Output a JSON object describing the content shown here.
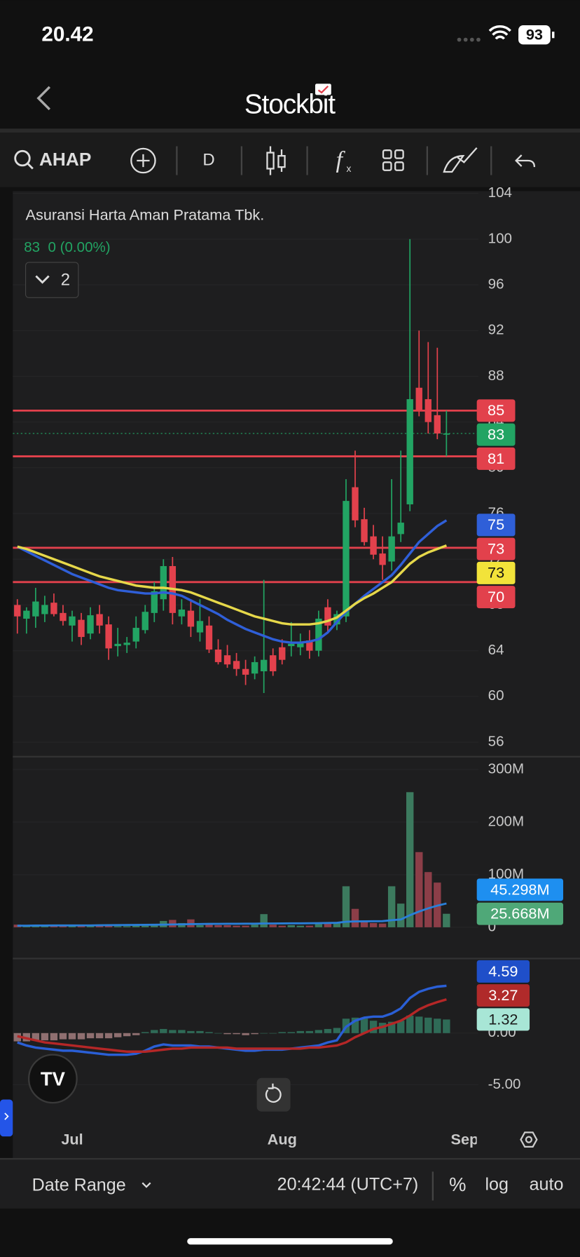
{
  "status_bar": {
    "time": "20.42",
    "battery": "93"
  },
  "header": {
    "logo": "Stockbit"
  },
  "toolbar": {
    "symbol": "AHAP",
    "interval": "D"
  },
  "footer": {
    "date_range": "Date Range",
    "clock": "20:42:44 (UTC+7)",
    "percent": "%",
    "log": "log",
    "auto": "auto"
  },
  "chart_data": [
    {
      "type": "candlestick",
      "title": "Asuransi Harta Aman Pratama Tbk.",
      "quote": "83  0 (0.00%)",
      "indicators": 2,
      "up_color": "#22a463",
      "down_color": "#e2414c",
      "xlim": [
        -0.5,
        50.5
      ],
      "xticks": [
        {
          "value": 6,
          "label": "Jul"
        },
        {
          "value": 29,
          "label": "Aug"
        },
        {
          "value": 49,
          "label": "Sep"
        }
      ],
      "ylim": [
        54.8,
        104.2
      ],
      "yticks": [
        56,
        60,
        64,
        68,
        72,
        76,
        80,
        84,
        88,
        92,
        96,
        100,
        104
      ],
      "open": [
        68,
        66.8,
        67,
        67.2,
        68.2,
        67.3,
        66.2,
        66.7,
        65.5,
        67.2,
        66.3,
        64.4,
        64.5,
        64.8,
        65.8,
        67.3,
        68.5,
        71.4,
        67,
        67.5,
        65.6,
        66.2,
        64.1,
        63.6,
        63.1,
        62.4,
        62,
        62.2,
        63.6,
        64.3,
        64.4,
        64.3,
        64.9,
        64,
        67.8,
        66.3,
        67,
        78.3,
        75.5,
        74,
        72.5,
        71.8,
        74.2,
        76.8,
        87,
        86,
        84.6,
        83
      ],
      "high": [
        68.5,
        67.8,
        69.5,
        68.8,
        69,
        68,
        67.5,
        67.3,
        67.8,
        68,
        67,
        66,
        65.2,
        67,
        68,
        70,
        72,
        72.2,
        68.5,
        68.5,
        68.5,
        67,
        65,
        64.5,
        63.8,
        63.2,
        63.5,
        70.2,
        64.2,
        65,
        66.5,
        65.5,
        65.8,
        67.5,
        68.5,
        67.5,
        79,
        81.5,
        76.5,
        75,
        74,
        79,
        81.5,
        100,
        92,
        91,
        90.5,
        85
      ],
      "low": [
        65.5,
        65.5,
        66,
        66.5,
        67,
        66.2,
        64.8,
        64.5,
        65,
        65.5,
        63.2,
        63.5,
        63.8,
        64.2,
        65.5,
        66.5,
        67.5,
        66.3,
        66.3,
        65.2,
        64.8,
        63.8,
        62.8,
        62.5,
        61.8,
        61,
        61.5,
        60.3,
        61.8,
        62.8,
        63.5,
        63.6,
        63.3,
        63.5,
        65.5,
        65.8,
        66.5,
        74.8,
        73.2,
        72,
        70.2,
        71,
        73.5,
        76.2,
        84.5,
        83,
        82.5,
        81
      ],
      "close": [
        67,
        67.5,
        68.3,
        68,
        67.2,
        66.6,
        67,
        65.2,
        67.1,
        66.2,
        64.2,
        64.6,
        64.7,
        66,
        67.4,
        69.2,
        71.4,
        67.3,
        67.6,
        66.1,
        66.6,
        64.1,
        63,
        62.8,
        62.4,
        61.9,
        63,
        63.2,
        62.2,
        63.2,
        64.6,
        64.8,
        64,
        66.8,
        66.2,
        67.2,
        77.1,
        75.4,
        73.5,
        72.4,
        71.5,
        74,
        75.2,
        86,
        85,
        84,
        83,
        83
      ],
      "moving_averages": [
        {
          "color": "#2f5fd8",
          "values": [
            73.1,
            72.7,
            72.3,
            71.9,
            71.5,
            71.1,
            70.7,
            70.4,
            70.1,
            69.8,
            69.5,
            69.3,
            69.2,
            69.1,
            69,
            69,
            69.1,
            69,
            68.8,
            68.4,
            68,
            67.6,
            67.2,
            66.7,
            66.3,
            65.9,
            65.6,
            65.3,
            65,
            64.8,
            64.7,
            64.7,
            64.8,
            65,
            65.6,
            66.5,
            67.4,
            68.1,
            68.8,
            69.4,
            70,
            70.6,
            71.5,
            72.5,
            73.5,
            74.2,
            74.9,
            75.4
          ]
        },
        {
          "color": "#e6d84a",
          "values": [
            73.1,
            72.9,
            72.6,
            72.3,
            72,
            71.7,
            71.4,
            71.1,
            70.8,
            70.5,
            70.3,
            70.1,
            69.9,
            69.7,
            69.6,
            69.5,
            69.5,
            69.4,
            69.3,
            69.1,
            68.8,
            68.5,
            68.2,
            67.9,
            67.6,
            67.3,
            67,
            66.8,
            66.6,
            66.4,
            66.3,
            66.3,
            66.3,
            66.4,
            66.6,
            66.9,
            67.5,
            68.1,
            68.6,
            69,
            69.5,
            70,
            70.8,
            71.6,
            72.2,
            72.6,
            72.9,
            73.2
          ]
        }
      ],
      "price_lines": [
        {
          "value": 85,
          "color": "#e2414c"
        },
        {
          "value": 81,
          "color": "#e2414c"
        },
        {
          "value": 73,
          "color": "#e2414c"
        },
        {
          "value": 70,
          "color": "#e2414c"
        }
      ],
      "last_price": 83,
      "tags": [
        {
          "value": 85,
          "color": "#e2414c"
        },
        {
          "value": 83,
          "color": "#22a463"
        },
        {
          "value": 81,
          "color": "#e2414c"
        },
        {
          "value": 75,
          "color": "#2f5fd8"
        },
        {
          "value": 73,
          "color": "#e2414c"
        },
        {
          "value": 73,
          "color": "#f2e33a"
        },
        {
          "value": 70,
          "color": "#e2414c"
        }
      ]
    },
    {
      "type": "volume",
      "up_color": "#3c7a5e",
      "down_color": "#8c3e48",
      "ylim": [
        -58000000,
        323000000
      ],
      "yticks": [
        0,
        {
          "value": 100000000,
          "label": "100M"
        },
        {
          "value": 200000000,
          "label": "200M"
        },
        {
          "value": 300000000,
          "label": "300M"
        }
      ],
      "values": [
        5000000,
        4000000,
        4000000,
        3000000,
        3000000,
        3000000,
        2000000,
        3000000,
        2000000,
        5000000,
        4000000,
        2000000,
        2000000,
        3000000,
        3000000,
        6000000,
        12000000,
        14000000,
        8000000,
        15000000,
        4000000,
        6000000,
        4000000,
        4000000,
        3000000,
        3000000,
        5000000,
        25000000,
        5000000,
        3000000,
        4000000,
        3000000,
        3000000,
        6000000,
        8000000,
        10000000,
        78000000,
        35000000,
        10000000,
        8000000,
        7000000,
        78000000,
        45000000,
        257000000,
        143000000,
        105000000,
        85000000,
        25668000
      ],
      "ma": {
        "color": "#2a7fd8",
        "values": [
          3000000,
          3000000,
          3200000,
          3300000,
          3400000,
          3400000,
          3400000,
          3500000,
          3600000,
          3800000,
          4000000,
          4200000,
          4300000,
          4500000,
          4600000,
          4800000,
          5000000,
          5400000,
          5600000,
          6000000,
          6200000,
          6400000,
          6500000,
          6600000,
          6600000,
          6700000,
          6800000,
          7200000,
          7300000,
          7400000,
          7500000,
          7600000,
          7700000,
          7900000,
          8100000,
          8400000,
          10500000,
          11200000,
          11300000,
          11500000,
          11600000,
          13500000,
          14800000,
          23000000,
          30000000,
          36000000,
          41000000,
          45298000
        ]
      },
      "tags": [
        {
          "value": 45298000,
          "label": "45.298M",
          "color": "#1e8ff0",
          "text_color": "#ffffff"
        },
        {
          "value": 25668000,
          "label": "25.668M",
          "color": "#4fa878",
          "text_color": "#ffffff"
        }
      ]
    },
    {
      "type": "macd",
      "pos_color": "#2f6b57",
      "neg_color": "#8f6f70",
      "ylim": [
        -8.46,
        7.15
      ],
      "yticks": [
        {
          "value": -5,
          "label": "-5.00"
        },
        {
          "value": 0,
          "label": "0.00"
        }
      ],
      "histogram": [
        -0.8,
        -0.8,
        -0.7,
        -0.7,
        -0.7,
        -0.6,
        -0.6,
        -0.6,
        -0.5,
        -0.5,
        -0.5,
        -0.4,
        -0.3,
        -0.2,
        0.1,
        0.3,
        0.4,
        0.3,
        0.3,
        0.2,
        0.2,
        0.1,
        0,
        -0.1,
        -0.1,
        -0.2,
        -0.1,
        0,
        0,
        0.1,
        0.1,
        0.2,
        0.2,
        0.3,
        0.4,
        0.5,
        1.4,
        1.5,
        1.4,
        1.2,
        1,
        1.1,
        1.2,
        1.7,
        1.6,
        1.5,
        1.4,
        1.32
      ],
      "lines": [
        {
          "color": "#2a5fd6",
          "values": [
            -0.9,
            -1.2,
            -1.4,
            -1.5,
            -1.6,
            -1.7,
            -1.7,
            -1.8,
            -1.9,
            -2,
            -2.1,
            -2.1,
            -2.1,
            -2,
            -1.7,
            -1.3,
            -1.1,
            -1.2,
            -1.2,
            -1.2,
            -1.3,
            -1.3,
            -1.4,
            -1.5,
            -1.6,
            -1.7,
            -1.7,
            -1.6,
            -1.6,
            -1.6,
            -1.5,
            -1.4,
            -1.3,
            -1.2,
            -0.9,
            -0.7,
            0.6,
            1.2,
            1.5,
            1.6,
            1.6,
            1.9,
            2.4,
            3.4,
            4,
            4.3,
            4.5,
            4.59
          ]
        },
        {
          "color": "#b52727",
          "values": [
            -0.3,
            -0.5,
            -0.7,
            -0.9,
            -1,
            -1.1,
            -1.2,
            -1.3,
            -1.4,
            -1.5,
            -1.6,
            -1.7,
            -1.8,
            -1.8,
            -1.8,
            -1.7,
            -1.6,
            -1.5,
            -1.5,
            -1.4,
            -1.4,
            -1.4,
            -1.4,
            -1.4,
            -1.5,
            -1.5,
            -1.5,
            -1.5,
            -1.5,
            -1.5,
            -1.5,
            -1.5,
            -1.4,
            -1.4,
            -1.3,
            -1.2,
            -0.9,
            -0.4,
            0,
            0.4,
            0.6,
            0.9,
            1.2,
            1.7,
            2.3,
            2.7,
            3,
            3.27
          ]
        }
      ],
      "tags": [
        {
          "value": 4.59,
          "color": "#1f4fc9",
          "text_color": "#ffffff"
        },
        {
          "value": 3.27,
          "color": "#b02a2a",
          "text_color": "#ffffff"
        },
        {
          "value": 1.32,
          "color": "#a8e6d6",
          "text_color": "#1a1a1a"
        }
      ]
    }
  ]
}
